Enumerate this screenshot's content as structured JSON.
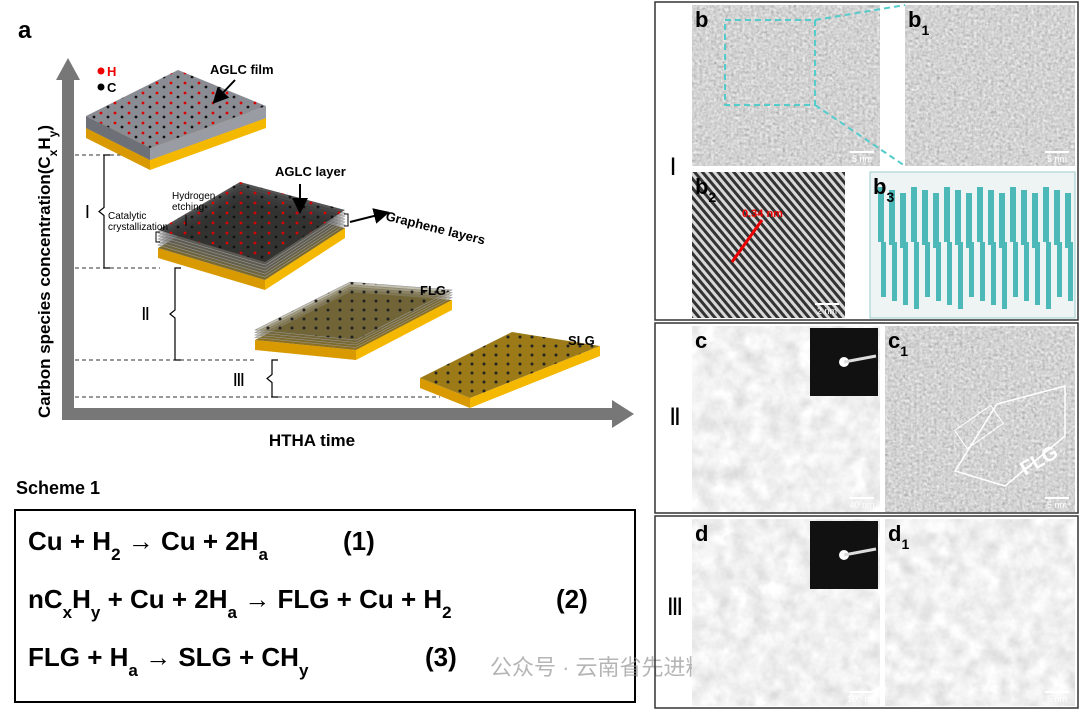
{
  "panel_a": {
    "label": "a",
    "legend": {
      "h": "H",
      "c": "C"
    },
    "y_axis": {
      "parts": [
        "Carbon species concentration(C",
        "x",
        "H",
        "y",
        ")"
      ]
    },
    "x_axis": "HTHA time",
    "stages": [
      "Ⅰ",
      "Ⅱ",
      "Ⅲ"
    ],
    "annotations": {
      "aglc_film": "AGLC film",
      "aglc_layer": "AGLC layer",
      "graphene_layers": "Graphene layers",
      "hydrogen_etching": [
        "Hydrogen",
        "etching"
      ],
      "catalytic": [
        "Catalytic",
        "crystallization"
      ],
      "flg": "FLG",
      "slg": "SLG"
    }
  },
  "scheme": {
    "title": "Scheme 1",
    "equations": [
      {
        "parts": [
          "Cu + H",
          "2",
          " → Cu + 2H",
          "a"
        ],
        "number": "(1)"
      },
      {
        "parts": [
          "nC",
          "x",
          "H",
          "y",
          " + Cu + 2H",
          "a",
          " → FLG + Cu + H",
          "2"
        ],
        "number": "(2)"
      },
      {
        "parts": [
          "FLG + H",
          "a",
          " → SLG + CH",
          "y"
        ],
        "number": "(3)"
      }
    ]
  },
  "micrographs": {
    "rows": [
      {
        "stage": "Ⅰ",
        "panels": [
          {
            "letter": "b",
            "scale": "5 nm"
          },
          {
            "letter": "b",
            "sub": "1",
            "scale": "5 nm"
          },
          {
            "letter": "b",
            "sub": "2",
            "scale": "2 nm",
            "annotation": "0.34 nm"
          },
          {
            "letter": "b",
            "sub": "3"
          }
        ]
      },
      {
        "stage": "Ⅱ",
        "panels": [
          {
            "letter": "c",
            "scale": "40 nm"
          },
          {
            "letter": "c",
            "sub": "1",
            "scale": "5 nm",
            "annotation": "FLG"
          }
        ]
      },
      {
        "stage": "Ⅲ",
        "panels": [
          {
            "letter": "d",
            "scale": "100 nm"
          },
          {
            "letter": "d",
            "sub": "1",
            "scale": "5 nm"
          }
        ]
      }
    ]
  },
  "watermark": "公众号 · 云南省先进粉体材料创新团队"
}
